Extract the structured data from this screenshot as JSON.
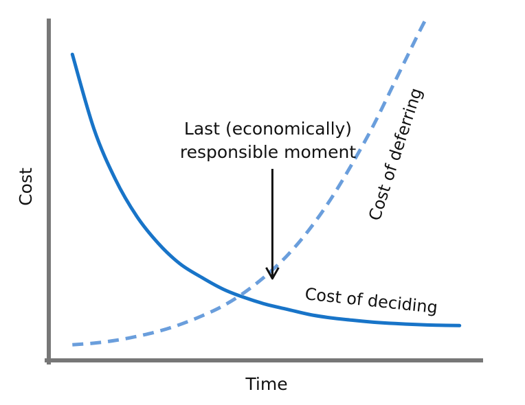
{
  "chart_data": {
    "type": "line",
    "title": "",
    "xlabel": "Time",
    "ylabel": "Cost",
    "xlim": [
      0,
      100
    ],
    "ylim": [
      0,
      100
    ],
    "grid": false,
    "legend": "none",
    "series": [
      {
        "name": "Cost of deciding",
        "style": "solid",
        "color": "#1874c8",
        "x": [
          5,
          10,
          15,
          20,
          25,
          30,
          35,
          40,
          45,
          50,
          55,
          60,
          65,
          70,
          75,
          80,
          85,
          90,
          95
        ],
        "y": [
          90,
          68,
          53,
          42,
          34,
          28,
          24,
          20.5,
          18,
          16,
          14.5,
          13,
          12,
          11.3,
          10.7,
          10.3,
          10,
          9.8,
          9.7
        ]
      },
      {
        "name": "Cost of deferring",
        "style": "dashed",
        "color": "#6a9edc",
        "x": [
          5,
          10,
          15,
          20,
          25,
          30,
          35,
          40,
          45,
          50,
          55,
          60,
          65,
          70,
          75,
          80,
          85,
          87
        ],
        "y": [
          4,
          4.5,
          5.3,
          6.5,
          8,
          10,
          12.5,
          15.5,
          19.5,
          24.5,
          30.5,
          38,
          47,
          57.5,
          69,
          82,
          95,
          100
        ]
      }
    ],
    "annotations": [
      {
        "text_lines": [
          "Last (economically)",
          "responsible moment"
        ],
        "points_to": [
          51.5,
          22
        ]
      }
    ],
    "axis_color": "#777777"
  }
}
